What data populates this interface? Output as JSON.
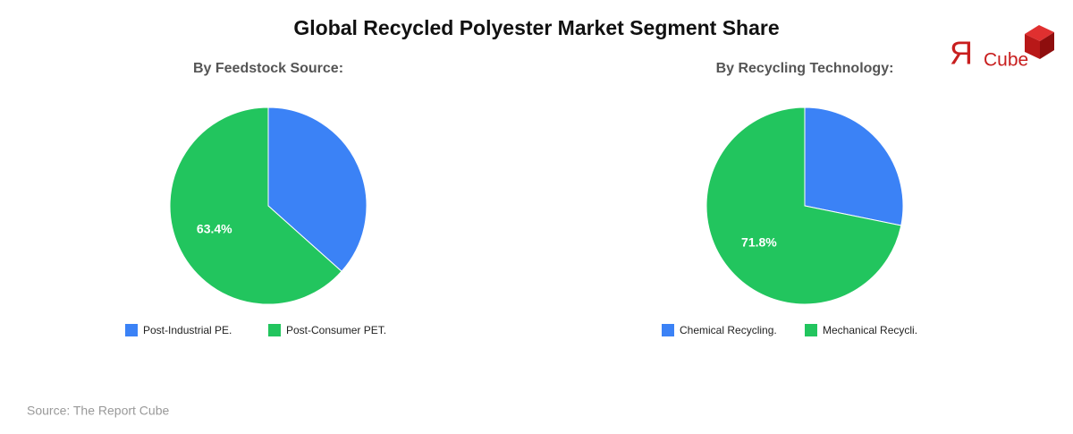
{
  "title": "Global Recycled Polyester Market Segment Share",
  "source": "Source: The Report Cube",
  "logo": {
    "mark": "Я",
    "text": "Cube"
  },
  "chart_data": [
    {
      "type": "pie",
      "title": "By Feedstock Source:",
      "categories": [
        "Post-Industrial PE.",
        "Post-Consumer PET."
      ],
      "values": [
        36.6,
        63.4
      ],
      "value_labels": [
        null,
        "63.4%"
      ],
      "colors": [
        "#3b82f6",
        "#22c55e"
      ]
    },
    {
      "type": "pie",
      "title": "By Recycling Technology:",
      "categories": [
        "Chemical Recycling.",
        "Mechanical Recycli."
      ],
      "values": [
        28.2,
        71.8
      ],
      "value_labels": [
        null,
        "71.8%"
      ],
      "colors": [
        "#3b82f6",
        "#22c55e"
      ]
    }
  ]
}
